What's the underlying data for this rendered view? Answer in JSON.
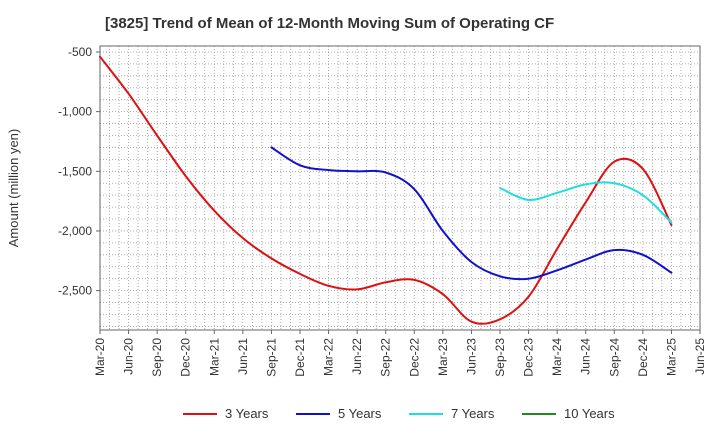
{
  "chart_data": {
    "type": "line",
    "title": "[3825]  Trend of Mean of 12-Month Moving Sum of Operating CF",
    "xlabel": "",
    "ylabel": "Amount (million yen)",
    "ylim": [
      -2830,
      -450
    ],
    "yticks": [
      -500,
      -1000,
      -1500,
      -2000,
      -2500
    ],
    "ytick_labels": [
      "-500",
      "-1,000",
      "-1,500",
      "-2,000",
      "-2,500"
    ],
    "xticks": [
      "Mar-20",
      "Jun-20",
      "Sep-20",
      "Dec-20",
      "Mar-21",
      "Jun-21",
      "Sep-21",
      "Dec-21",
      "Mar-22",
      "Jun-22",
      "Sep-22",
      "Dec-22",
      "Mar-23",
      "Jun-23",
      "Sep-23",
      "Dec-23",
      "Mar-24",
      "Jun-24",
      "Sep-24",
      "Dec-24",
      "Mar-25",
      "Jun-25"
    ],
    "grid": true,
    "legend_position": "bottom",
    "series": [
      {
        "name": "3 Years",
        "color": "#dd1111",
        "points": [
          [
            0,
            -540
          ],
          [
            1,
            -850
          ],
          [
            2,
            -1200
          ],
          [
            3,
            -1540
          ],
          [
            4,
            -1830
          ],
          [
            5,
            -2060
          ],
          [
            6,
            -2230
          ],
          [
            7,
            -2360
          ],
          [
            8,
            -2460
          ],
          [
            9,
            -2490
          ],
          [
            10,
            -2430
          ],
          [
            11,
            -2410
          ],
          [
            12,
            -2530
          ],
          [
            13,
            -2760
          ],
          [
            14,
            -2740
          ],
          [
            15,
            -2550
          ],
          [
            16,
            -2150
          ],
          [
            17,
            -1760
          ],
          [
            18,
            -1420
          ],
          [
            19,
            -1480
          ],
          [
            20,
            -1950
          ]
        ]
      },
      {
        "name": "5 Years",
        "color": "#1111cc",
        "points": [
          [
            6,
            -1300
          ],
          [
            7,
            -1450
          ],
          [
            8,
            -1490
          ],
          [
            9,
            -1500
          ],
          [
            10,
            -1510
          ],
          [
            11,
            -1650
          ],
          [
            12,
            -2000
          ],
          [
            13,
            -2260
          ],
          [
            14,
            -2380
          ],
          [
            15,
            -2400
          ],
          [
            16,
            -2330
          ],
          [
            17,
            -2240
          ],
          [
            18,
            -2160
          ],
          [
            19,
            -2200
          ],
          [
            20,
            -2350
          ]
        ]
      },
      {
        "name": "7 Years",
        "color": "#22dddd",
        "points": [
          [
            14,
            -1640
          ],
          [
            15,
            -1740
          ],
          [
            16,
            -1680
          ],
          [
            17,
            -1610
          ],
          [
            18,
            -1600
          ],
          [
            19,
            -1700
          ],
          [
            20,
            -1930
          ]
        ]
      },
      {
        "name": "10 Years",
        "color": "#228822",
        "points": []
      }
    ]
  }
}
